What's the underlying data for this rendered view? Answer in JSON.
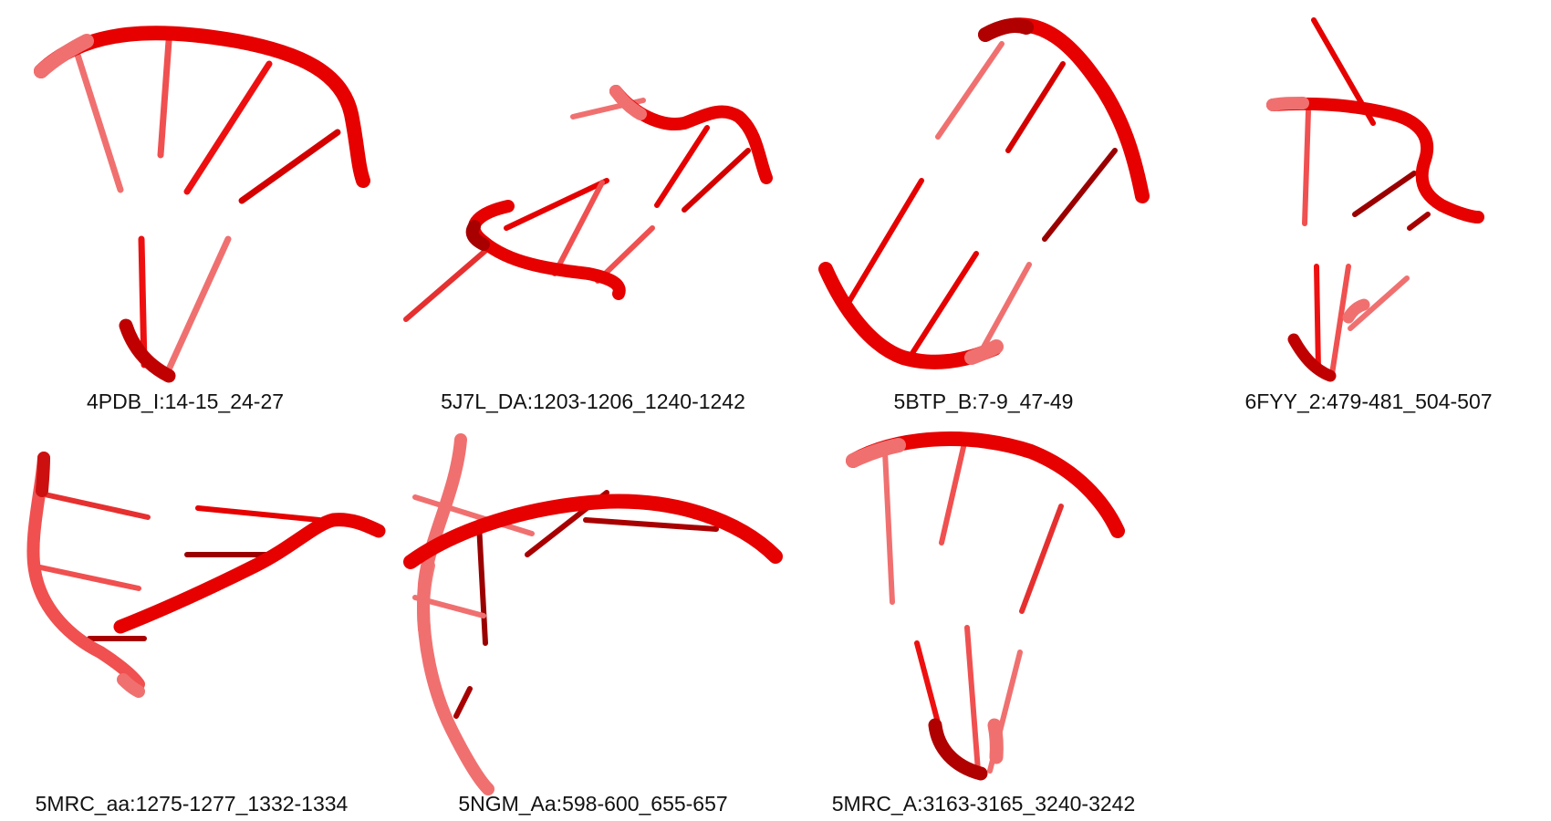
{
  "figure": {
    "colors": {
      "backbone": "#e60000",
      "backbone_dark": "#a80000",
      "base_pair": "#f01515",
      "base_pair_faded": "#f07070",
      "base_pair_dark": "#9b0000",
      "caption": "#111111",
      "background": "#ffffff"
    },
    "panels": [
      {
        "id": "4PDB",
        "label": "4PDB_I:14-15_24-27"
      },
      {
        "id": "5J7L",
        "label": "5J7L_DA:1203-1206_1240-1242"
      },
      {
        "id": "5BTP",
        "label": "5BTP_B:7-9_47-49"
      },
      {
        "id": "6FYY",
        "label": "6FYY_2:479-481_504-507"
      },
      {
        "id": "5MRC_aa",
        "label": "5MRC_aa:1275-1277_1332-1334"
      },
      {
        "id": "5NGM",
        "label": "5NGM_Aa:598-600_655-657"
      },
      {
        "id": "5MRC_A",
        "label": "5MRC_A:3163-3165_3240-3242"
      }
    ]
  }
}
